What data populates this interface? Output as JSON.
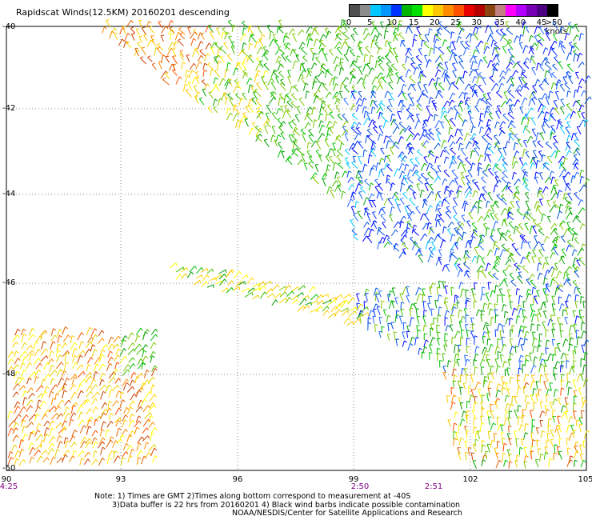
{
  "title": "Rapidscat Winds(12.5KM) 20160201 descending",
  "legend": {
    "colors": [
      "#505050",
      "#8c8c8c",
      "#00c8ff",
      "#0096ff",
      "#0032ff",
      "#00b400",
      "#00e000",
      "#ffff00",
      "#ffc800",
      "#ff8c00",
      "#ff5000",
      "#e60000",
      "#b40000",
      "#8b4513",
      "#c08080",
      "#ff00ff",
      "#b400ff",
      "#7800b4",
      "#4b0082",
      "#000000"
    ],
    "labels": [
      "0",
      "5",
      "10",
      "15",
      "20",
      "25",
      "30",
      "35",
      "40",
      "45",
      ">50 knots"
    ],
    "label_positions": [
      0.0,
      0.1,
      0.205,
      0.31,
      0.41,
      0.51,
      0.61,
      0.72,
      0.82,
      0.92,
      1.0
    ]
  },
  "axes": {
    "lat_labels": [
      "-40",
      "-42",
      "-44",
      "-46",
      "-48",
      "-50"
    ],
    "lon_labels": [
      "90",
      "93",
      "96",
      "99",
      "102",
      "105"
    ]
  },
  "times": [
    "4:25",
    "2:50",
    "2:51"
  ],
  "notes": [
    "Note: 1) Times are GMT 2)Times along bottom correspond to measurement at -40S",
    "3)Data buffer is 22 hrs from 20160201 4) Black wind barbs indicate possible contamination",
    "NOAA/NESDIS/Center for Satellite Applications and Research"
  ],
  "colors": {
    "grid": "#888888",
    "time_text": "#800080"
  }
}
